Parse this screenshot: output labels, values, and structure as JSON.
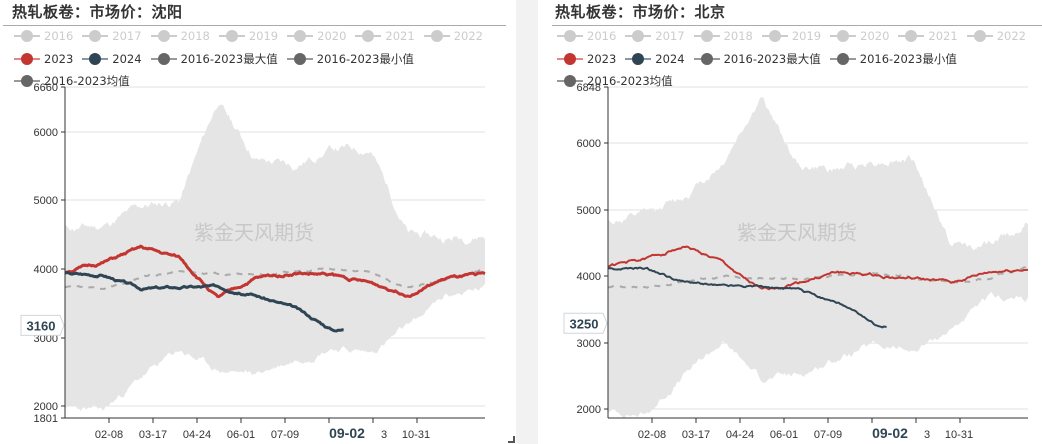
{
  "colors": {
    "y2023": "#c23531",
    "y2024": "#2f4554",
    "inactive": "#cccccc",
    "stat": "#666666",
    "band": "#e5e5e5",
    "mean_dash": "#aaaaaa",
    "watermark": "#c8c8c8"
  },
  "panels": [
    {
      "title": "热轧板卷：市场价：沈阳",
      "watermark": "紫金天风期货",
      "legend_row1": [
        {
          "label": "2016",
          "active": false
        },
        {
          "label": "2017",
          "active": false
        },
        {
          "label": "2018",
          "active": false
        },
        {
          "label": "2019",
          "active": false
        },
        {
          "label": "2020",
          "active": false
        },
        {
          "label": "2021",
          "active": false
        },
        {
          "label": "2022",
          "active": false
        }
      ],
      "legend_row2": [
        {
          "label": "2023",
          "color_key": "y2023"
        },
        {
          "label": "2024",
          "color_key": "y2024"
        },
        {
          "label": "2016-2023最大值",
          "color_key": "stat"
        },
        {
          "label": "2016-2023最小值",
          "color_key": "stat"
        }
      ],
      "legend_row3": [
        {
          "label": "2016-2023均值",
          "color_key": "stat"
        }
      ],
      "y_axis": {
        "min_label": "1801",
        "max_label": "6660",
        "ticks": [
          "6000",
          "5000",
          "4000",
          "3000",
          "2000"
        ]
      },
      "x_axis": {
        "ticks": [
          "02-08",
          "03-17",
          "04-24",
          "06-01",
          "07-09",
          "09-02",
          "3",
          "10-31"
        ],
        "highlight": "09-02"
      },
      "pointer_label": "3160"
    },
    {
      "title": "热轧板卷：市场价：北京",
      "watermark": "紫金天风期货",
      "legend_row1": [
        {
          "label": "2016",
          "active": false
        },
        {
          "label": "2017",
          "active": false
        },
        {
          "label": "2018",
          "active": false
        },
        {
          "label": "2019",
          "active": false
        },
        {
          "label": "2020",
          "active": false
        },
        {
          "label": "2021",
          "active": false
        },
        {
          "label": "2022",
          "active": false
        }
      ],
      "legend_row2": [
        {
          "label": "2023",
          "color_key": "y2023"
        },
        {
          "label": "2024",
          "color_key": "y2024"
        },
        {
          "label": "2016-2023最大值",
          "color_key": "stat"
        },
        {
          "label": "2016-2023最小值",
          "color_key": "stat"
        }
      ],
      "legend_row3": [
        {
          "label": "2016-2023均值",
          "color_key": "stat"
        }
      ],
      "y_axis": {
        "min_label": "",
        "max_label": "6848",
        "ticks": [
          "6000",
          "5000",
          "4000",
          "3000",
          "2000"
        ]
      },
      "x_axis": {
        "ticks": [
          "02-08",
          "03-17",
          "04-24",
          "06-01",
          "07-09",
          "09-02",
          "3",
          "10-31"
        ],
        "highlight": "09-02"
      },
      "pointer_label": "3250"
    }
  ],
  "chart_data": [
    {
      "type": "line",
      "title": "热轧板卷：市场价：沈阳",
      "xlabel": "",
      "ylabel": "",
      "ylim": [
        1801,
        6660
      ],
      "x": [
        "01-01",
        "02-08",
        "03-17",
        "04-24",
        "06-01",
        "07-09",
        "08-16",
        "09-02",
        "09-23",
        "10-31",
        "12-08",
        "12-31"
      ],
      "series": [
        {
          "name": "2023",
          "values": [
            3950,
            4080,
            4300,
            4150,
            3560,
            3850,
            3930,
            3900,
            3780,
            3620,
            3850,
            3900
          ]
        },
        {
          "name": "2024",
          "values": [
            3920,
            3900,
            3700,
            3720,
            3730,
            3600,
            3420,
            3100,
            null,
            null,
            null,
            null
          ]
        },
        {
          "name": "2016-2023最大值",
          "values": [
            4580,
            4620,
            4900,
            5000,
            6450,
            5600,
            5500,
            5750,
            5750,
            4500,
            4430,
            4500
          ]
        },
        {
          "name": "2016-2023最小值",
          "values": [
            1950,
            1900,
            2400,
            2800,
            2500,
            2450,
            2650,
            2850,
            2750,
            3150,
            3600,
            3700
          ]
        },
        {
          "name": "2016-2023均值",
          "values": [
            3720,
            3680,
            3870,
            3950,
            3930,
            3900,
            3950,
            4000,
            3940,
            3700,
            3850,
            4000
          ]
        }
      ],
      "pointer": {
        "value": 3160,
        "axis": "y"
      },
      "legend_position": "top",
      "grid": true
    },
    {
      "type": "line",
      "title": "热轧板卷：市场价：北京",
      "xlabel": "",
      "ylabel": "",
      "ylim": [
        1850,
        6848
      ],
      "x": [
        "01-01",
        "02-08",
        "03-17",
        "04-24",
        "06-01",
        "07-09",
        "08-16",
        "09-02",
        "09-23",
        "10-31",
        "12-08",
        "12-31"
      ],
      "series": [
        {
          "name": "2023",
          "values": [
            4150,
            4250,
            4450,
            4200,
            3770,
            3900,
            4050,
            4000,
            3950,
            3900,
            4050,
            4100
          ]
        },
        {
          "name": "2024",
          "values": [
            4100,
            4100,
            3900,
            3850,
            3850,
            3780,
            3600,
            3250,
            null,
            null,
            null,
            null
          ]
        },
        {
          "name": "2016-2023最大值",
          "values": [
            4800,
            4900,
            5200,
            5700,
            6700,
            5650,
            5600,
            5750,
            5750,
            4450,
            4450,
            4800
          ]
        },
        {
          "name": "2016-2023最小值",
          "values": [
            1950,
            1900,
            2500,
            3000,
            2450,
            2500,
            2750,
            2950,
            2850,
            3200,
            3650,
            3650
          ]
        },
        {
          "name": "2016-2023均值",
          "values": [
            3820,
            3820,
            3900,
            4000,
            3970,
            3950,
            4000,
            4050,
            3970,
            3900,
            3950,
            4150
          ]
        }
      ],
      "pointer": {
        "value": 3250,
        "axis": "y"
      },
      "legend_position": "top",
      "grid": true
    }
  ]
}
